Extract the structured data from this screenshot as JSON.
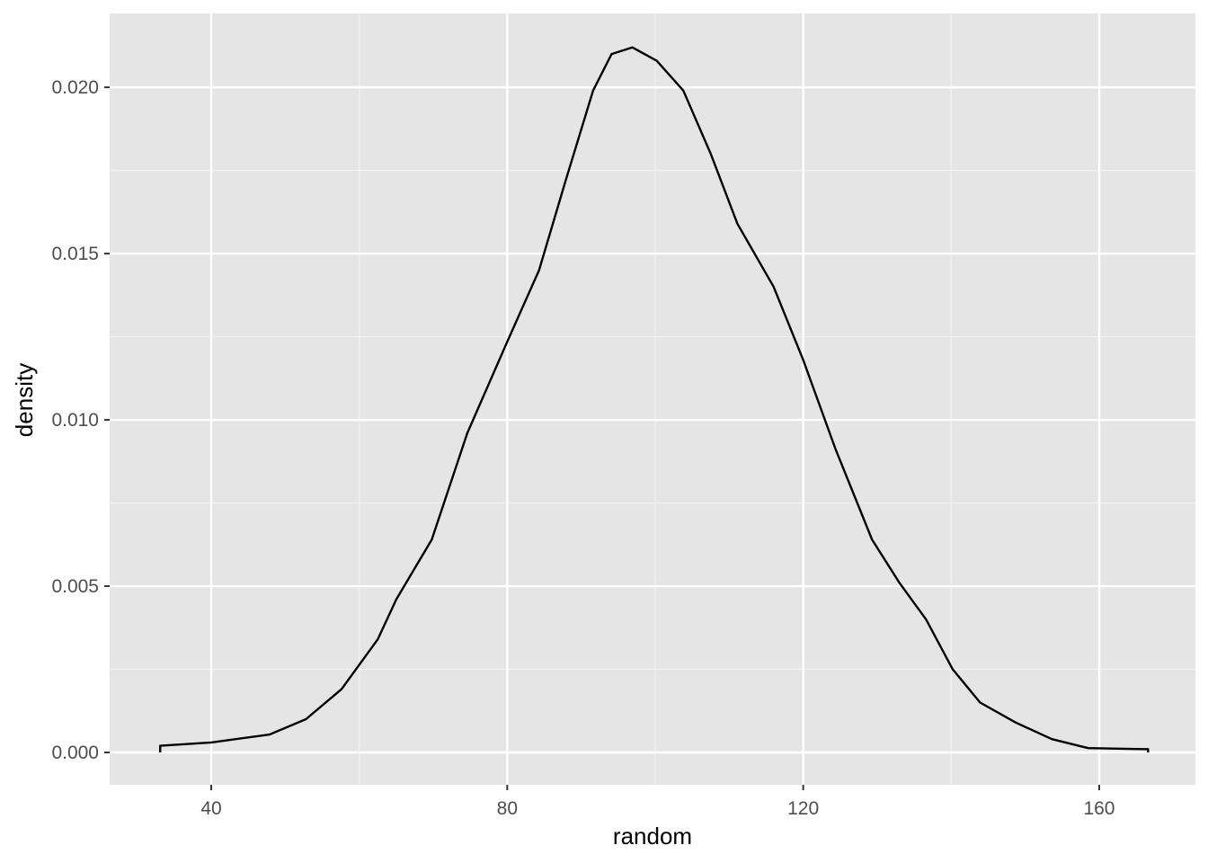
{
  "chart_data": {
    "type": "area",
    "x_label": "random",
    "y_label": "density",
    "x": [
      33.1,
      33.1,
      40,
      47.9,
      52.8,
      57.6,
      62.5,
      65,
      69.8,
      74.6,
      80,
      84.3,
      87.9,
      91.6,
      94.1,
      96.9,
      100.2,
      103.8,
      107.5,
      111.1,
      116,
      120,
      124.4,
      129.3,
      133,
      136.6,
      140.2,
      143.9,
      148.7,
      153.6,
      158.5,
      165.8,
      166.6,
      166.6
    ],
    "values": [
      0,
      0.0002,
      0.0003,
      0.00054,
      0.001,
      0.0019,
      0.0034,
      0.0046,
      0.0064,
      0.0096,
      0.01235,
      0.0145,
      0.0172,
      0.0199,
      0.021,
      0.0212,
      0.0208,
      0.0199,
      0.018,
      0.0159,
      0.014,
      0.0118,
      0.0091,
      0.0064,
      0.0051,
      0.004,
      0.0025,
      0.0015,
      0.0009,
      0.0004,
      0.00013,
      0.0001,
      0.0001,
      0
    ],
    "color": "#000000",
    "xlim": [
      26.27,
      173.0
    ],
    "xticks": [
      40,
      80,
      120,
      160
    ],
    "xminor": [
      60,
      100,
      140
    ],
    "ylim": [
      -0.000973,
      0.02222
    ],
    "yticks": [
      {
        "value": 0,
        "label": "0.000"
      },
      {
        "value": 0.005,
        "label": "0.005"
      },
      {
        "value": 0.01,
        "label": "0.010"
      },
      {
        "value": 0.015,
        "label": "0.015"
      },
      {
        "value": 0.02,
        "label": "0.020"
      }
    ],
    "yminor": [
      0.0025,
      0.0075,
      0.0125,
      0.0175
    ],
    "grid": true
  }
}
